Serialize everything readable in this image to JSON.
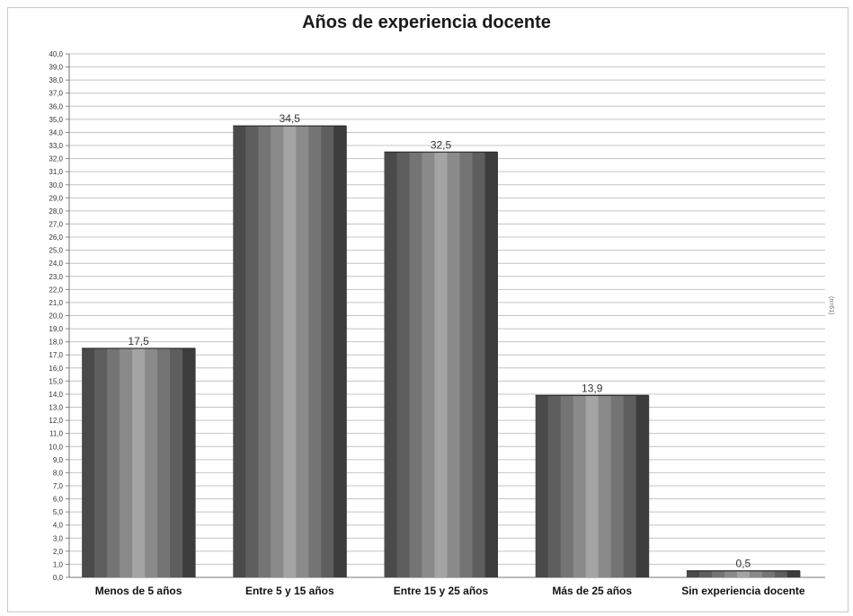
{
  "chart_data": {
    "type": "bar",
    "title": "Años de experiencia docente",
    "categories": [
      "Menos de 5 años",
      "Entre 5 y 15 años",
      "Entre 15 y 25 años",
      "Más de 25 años",
      "Sin experiencia docente"
    ],
    "values": [
      17.5,
      34.5,
      32.5,
      13.9,
      0.5
    ],
    "value_labels": [
      "17,5",
      "34,5",
      "32,5",
      "13,9",
      "0,5"
    ],
    "xlabel": "",
    "ylabel": "",
    "ylim": [
      0,
      40
    ],
    "ytick_step": 1,
    "grid": true,
    "legend": "none",
    "bar_colors": [
      "#4a4a4a",
      "#5e5e5e",
      "#747474",
      "#8a8a8a",
      "#a4a4a4",
      "#8a8a8a",
      "#747474",
      "#5e5e5e",
      "#3c3c3c"
    ]
  },
  "side_note": "(n=61)"
}
